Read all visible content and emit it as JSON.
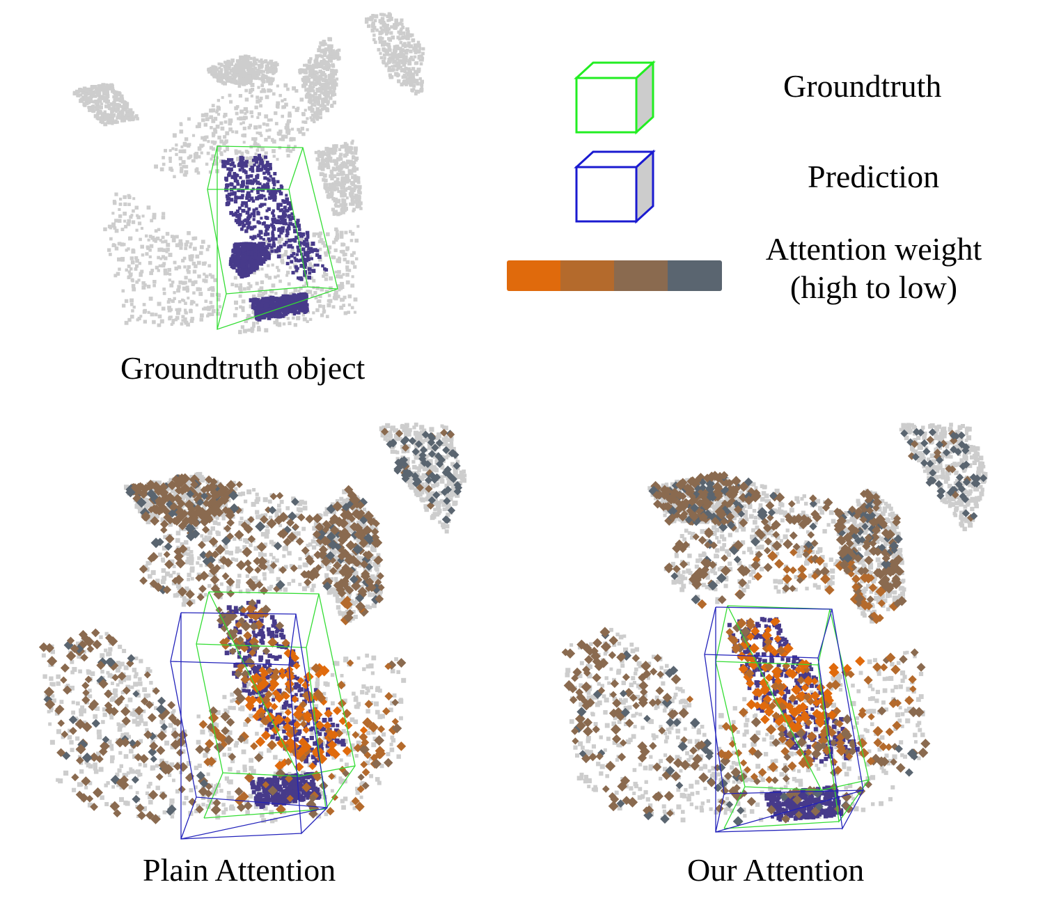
{
  "captions": {
    "top": "Groundtruth object",
    "bottom_left": "Plain Attention",
    "bottom_right": "Our Attention"
  },
  "legend": {
    "groundtruth_label": "Groundtruth",
    "prediction_label": "Prediction",
    "attention_label_line1": "Attention weight",
    "attention_label_line2": "(high to low)",
    "groundtruth_color": "#22ee22",
    "prediction_color": "#1a1ad0",
    "attention_scale": [
      "#e06a0c",
      "#b46a2c",
      "#8a6a4f",
      "#5a6570"
    ]
  },
  "colors": {
    "background_points": "#cdcdcd",
    "object_points": "#473a8a",
    "groundtruth_box": "#33dd33",
    "prediction_box": "#2222bb"
  }
}
